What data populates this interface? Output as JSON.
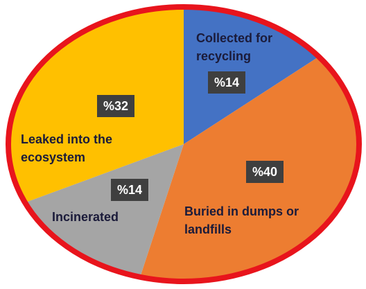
{
  "chart_data": {
    "type": "pie",
    "categories": [
      "Collected for recycling",
      "Buried in dumps or landfills",
      "Incinerated",
      "Leaked into the ecosystem"
    ],
    "values": [
      14,
      40,
      14,
      32
    ],
    "value_labels": [
      "%14",
      "%40",
      "%14",
      "%32"
    ],
    "colors": [
      "#4472c4",
      "#ed7d31",
      "#a5a5a5",
      "#ffc000"
    ],
    "border_color": "#e8141c"
  }
}
